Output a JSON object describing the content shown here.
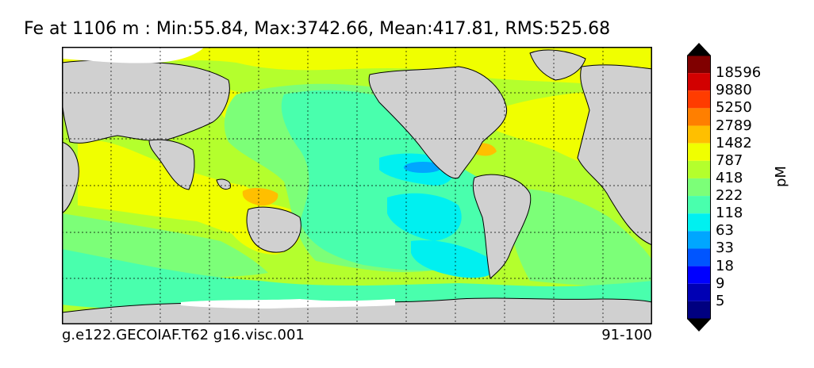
{
  "title": "Fe at 1106 m : Min:55.84, Max:3742.66, Mean:417.81, RMS:525.68",
  "footer": {
    "left": "g.e122.GECOIAF.T62 g16.visc.001",
    "right": "91-100"
  },
  "colorbar": {
    "unit": "pM",
    "levels": [
      "18596",
      "9880",
      "5250",
      "2789",
      "1482",
      "787",
      "418",
      "222",
      "118",
      "63",
      "33",
      "18",
      "9",
      "5"
    ],
    "colors": [
      "#800000",
      "#d20000",
      "#ff3c00",
      "#ff7f00",
      "#ffbf00",
      "#f0ff00",
      "#b4ff2d",
      "#7cff78",
      "#49ffad",
      "#00f0f0",
      "#00a6ff",
      "#0055ff",
      "#0000ff",
      "#0000b4",
      "#000080"
    ],
    "extend": "both"
  },
  "map": {
    "land_color": "#d0d0d0",
    "ice_color": "#ffffff",
    "gridlines": "dotted"
  }
}
